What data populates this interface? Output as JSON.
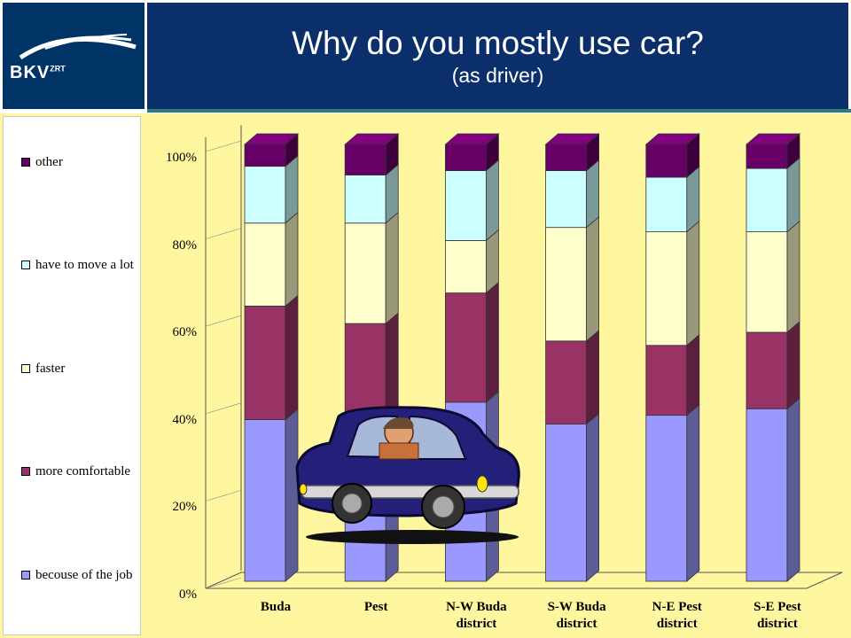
{
  "header": {
    "title": "Why do you mostly use car?",
    "subtitle": "(as driver)",
    "logo_text": "BKV",
    "logo_sup": "ZRT"
  },
  "colors": {
    "header_bg": "#0a2f6b",
    "accent_line": "#2a7f78",
    "chart_bg": "#fff6a0"
  },
  "chart_data": {
    "type": "bar",
    "stacked": true,
    "percent": true,
    "title": "Why do you mostly use car?",
    "subtitle": "(as driver)",
    "xlabel": "",
    "ylabel": "",
    "ylim": [
      0,
      100
    ],
    "yticks": [
      "0%",
      "20%",
      "40%",
      "60%",
      "80%",
      "100%"
    ],
    "categories": [
      "Buda",
      "Pest",
      "N-W Buda district",
      "S-W Buda district",
      "N-E Pest district",
      "S-E Pest district"
    ],
    "categories_lines": [
      [
        "Buda"
      ],
      [
        "Pest"
      ],
      [
        "N-W Buda",
        "district"
      ],
      [
        "S-W Buda",
        "district"
      ],
      [
        "N-E Pest",
        "district"
      ],
      [
        "S-E Pest",
        "district"
      ]
    ],
    "legend_position": "left",
    "grid": false,
    "series": [
      {
        "name": "becouse of the job",
        "color": "#9999ff",
        "values": [
          37,
          33,
          41,
          36,
          38,
          39.5
        ]
      },
      {
        "name": "more comfortable",
        "color": "#993366",
        "values": [
          26,
          26,
          25,
          19,
          16,
          17.5
        ]
      },
      {
        "name": "faster",
        "color": "#ffffcc",
        "values": [
          19,
          23,
          12,
          26,
          26,
          23
        ]
      },
      {
        "name": "have to move a lot",
        "color": "#ccffff",
        "values": [
          13,
          11,
          16,
          13,
          12.5,
          14.5
        ]
      },
      {
        "name": "other",
        "color": "#660066",
        "values": [
          5,
          7,
          6,
          6,
          7.5,
          5.5
        ]
      }
    ],
    "legend_order": [
      "other",
      "have to move a lot",
      "faster",
      "more comfortable",
      "becouse of the job"
    ]
  }
}
